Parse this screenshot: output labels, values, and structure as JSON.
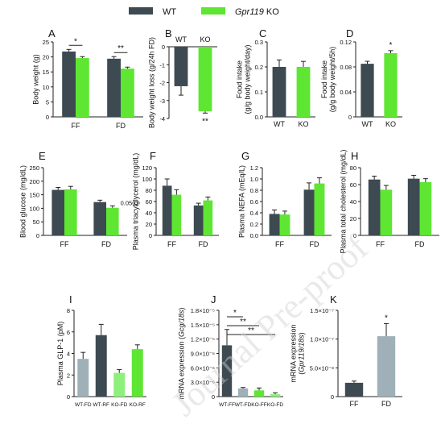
{
  "legend": {
    "items": [
      {
        "label": "WT",
        "color": "#3d4a52"
      },
      {
        "label": "Gpr119 KO",
        "color": "#5ee632",
        "italic_part": "Gpr119"
      }
    ]
  },
  "watermark": "Journal Pre-proof",
  "colors": {
    "wt": "#3d4a52",
    "ko": "#5ee632",
    "wt_light": "#9fb0b8",
    "ko_light": "#8ef07a"
  },
  "chart_data": [
    {
      "panel": "A",
      "type": "bar",
      "ylabel": "Body weight (g)",
      "categories": [
        "FF",
        "FD"
      ],
      "series": [
        {
          "name": "WT",
          "values": [
            21.8,
            19.4
          ],
          "errors": [
            0.7,
            0.7
          ]
        },
        {
          "name": "KO",
          "values": [
            19.6,
            16.1
          ],
          "errors": [
            0.5,
            0.5
          ]
        }
      ],
      "ylim": [
        0,
        25
      ],
      "yticks": [
        0,
        5,
        10,
        15,
        20,
        25
      ],
      "significance": [
        {
          "category": "FF",
          "label": "*"
        },
        {
          "category": "FD",
          "label": "**"
        }
      ]
    },
    {
      "panel": "B",
      "type": "bar",
      "ylabel": "Body weight loss (g/24h FD)",
      "categories": [
        "WT",
        "KO"
      ],
      "values": [
        -2.2,
        -3.6
      ],
      "errors": [
        0.5,
        0.1
      ],
      "ylim": [
        -4,
        0
      ],
      "yticks": [
        -4,
        -3,
        -2,
        -1,
        0
      ],
      "significance": [
        {
          "category": "KO",
          "label": "**"
        }
      ]
    },
    {
      "panel": "C",
      "type": "bar",
      "ylabel": "Food intake",
      "ylabel2": "(g/g body weight/day)",
      "categories": [
        "WT",
        "KO"
      ],
      "values": [
        0.2,
        0.2
      ],
      "errors": [
        0.028,
        0.022
      ],
      "ylim": [
        0,
        0.3
      ],
      "yticks": [
        0.0,
        0.1,
        0.2,
        0.3
      ],
      "tick_labels": [
        "0.0",
        "0.1",
        "0.2",
        "0.3"
      ]
    },
    {
      "panel": "D",
      "type": "bar",
      "ylabel": "Food intake",
      "ylabel2": "(g/g body weight/5h)",
      "categories": [
        "WT",
        "KO"
      ],
      "values": [
        0.085,
        0.102
      ],
      "errors": [
        0.004,
        0.004
      ],
      "ylim": [
        0,
        0.12
      ],
      "yticks": [
        0,
        0.04,
        0.08,
        0.12
      ],
      "tick_labels": [
        "0",
        "0.04",
        "0.08",
        "0.12"
      ],
      "significance": [
        {
          "category": "KO",
          "label": "*"
        }
      ]
    },
    {
      "panel": "E",
      "type": "bar",
      "ylabel": "Blood glucose (mg/dL)",
      "categories": [
        "FF",
        "FD"
      ],
      "series": [
        {
          "name": "WT",
          "values": [
            168,
            123
          ],
          "errors": [
            9,
            7
          ]
        },
        {
          "name": "KO",
          "values": [
            170,
            102
          ],
          "errors": [
            11,
            7
          ]
        }
      ],
      "ylim": [
        0,
        250
      ],
      "yticks": [
        0,
        50,
        100,
        150,
        200,
        250
      ],
      "annotations": [
        {
          "category": "FD",
          "label": "0.0501"
        }
      ]
    },
    {
      "panel": "F",
      "type": "bar",
      "ylabel": "Plasma triacylglycerol (mg/dL)",
      "categories": [
        "FF",
        "FD"
      ],
      "series": [
        {
          "name": "WT",
          "values": [
            88,
            53
          ],
          "errors": [
            12,
            4
          ]
        },
        {
          "name": "KO",
          "values": [
            72,
            62
          ],
          "errors": [
            9,
            6
          ]
        }
      ],
      "ylim": [
        0,
        120
      ],
      "yticks": [
        0,
        20,
        40,
        60,
        80,
        100,
        120
      ]
    },
    {
      "panel": "G",
      "type": "bar",
      "ylabel": "Plasma NEFA (mEq/L)",
      "categories": [
        "FF",
        "FD"
      ],
      "series": [
        {
          "name": "WT",
          "values": [
            0.38,
            0.81
          ],
          "errors": [
            0.07,
            0.12
          ]
        },
        {
          "name": "KO",
          "values": [
            0.37,
            0.92
          ],
          "errors": [
            0.06,
            0.1
          ]
        }
      ],
      "ylim": [
        0,
        1.2
      ],
      "yticks": [
        0,
        0.2,
        0.4,
        0.6,
        0.8,
        1.0,
        1.2
      ],
      "tick_labels": [
        "0.0",
        "0.2",
        "0.4",
        "0.6",
        "0.8",
        "1.0",
        "1.2"
      ]
    },
    {
      "panel": "H",
      "type": "bar",
      "ylabel": "Plasma total cholesterol (mg/dL)",
      "categories": [
        "FF",
        "FD"
      ],
      "series": [
        {
          "name": "WT",
          "values": [
            66,
            67
          ],
          "errors": [
            4,
            4
          ]
        },
        {
          "name": "KO",
          "values": [
            54,
            63
          ],
          "errors": [
            5,
            4
          ]
        }
      ],
      "ylim": [
        0,
        80
      ],
      "yticks": [
        0,
        20,
        40,
        60,
        80
      ]
    },
    {
      "panel": "I",
      "type": "bar",
      "ylabel": "Plasma GLP-1 (pM)",
      "categories": [
        "WT-FD",
        "WT-RF",
        "KO-FD",
        "KO-RF"
      ],
      "values": [
        3.5,
        5.7,
        2.2,
        4.4
      ],
      "errors": [
        0.6,
        1.0,
        0.3,
        0.4
      ],
      "bar_colors": [
        "#9fb0b8",
        "#3d4a52",
        "#8ef07a",
        "#5ee632"
      ],
      "ylim": [
        0,
        8
      ],
      "yticks": [
        0,
        2,
        4,
        6,
        8
      ]
    },
    {
      "panel": "J",
      "type": "bar",
      "ylabel": "mRNA expression (Gcg/18s)",
      "ylabel_italic_part": "Gcg/18s",
      "categories": [
        "WT-FF",
        "WT-FD",
        "KO-FF",
        "KO-FD"
      ],
      "values": [
        1.07e-05,
        1.7e-06,
        1.3e-06,
        5e-07
      ],
      "errors": [
        3.3e-06,
        2e-07,
        5e-07,
        3e-07
      ],
      "bar_colors": [
        "#3d4a52",
        "#9fb0b8",
        "#5ee632",
        "#8ef07a"
      ],
      "ylim": [
        0,
        1.8e-05
      ],
      "yticks": [
        0,
        3e-06,
        6e-06,
        9e-06,
        1.2e-05,
        1.5e-05,
        1.8e-05
      ],
      "tick_labels": [
        "0",
        "3.0×10⁻⁶",
        "6.0×10⁻⁶",
        "9.0×10⁻⁶",
        "1.2×10⁻⁵",
        "1.5×10⁻⁵",
        "1.8×10⁻⁵"
      ],
      "significance": [
        {
          "from": "WT-FF",
          "to": "WT-FD",
          "label": "*"
        },
        {
          "from": "WT-FF",
          "to": "KO-FF",
          "label": "**"
        },
        {
          "from": "WT-FF",
          "to": "KO-FD",
          "label": "**"
        }
      ]
    },
    {
      "panel": "K",
      "type": "bar",
      "ylabel": "mRNA expression",
      "ylabel2": "(Gpr119/18s)",
      "categories": [
        "FF",
        "FD"
      ],
      "values": [
        2.4e-08,
        1.05e-07
      ],
      "errors": [
        3e-09,
        2.2e-08
      ],
      "bar_colors": [
        "#3d4a52",
        "#9fb0b8"
      ],
      "ylim": [
        0,
        1.5e-07
      ],
      "yticks": [
        0,
        5e-08,
        1e-07,
        1.5e-07
      ],
      "tick_labels": [
        "0",
        "5.0×10⁻⁸",
        "1.0×10⁻⁷",
        "1.5×10⁻⁷"
      ],
      "significance": [
        {
          "category": "FD",
          "label": "*"
        }
      ]
    }
  ]
}
